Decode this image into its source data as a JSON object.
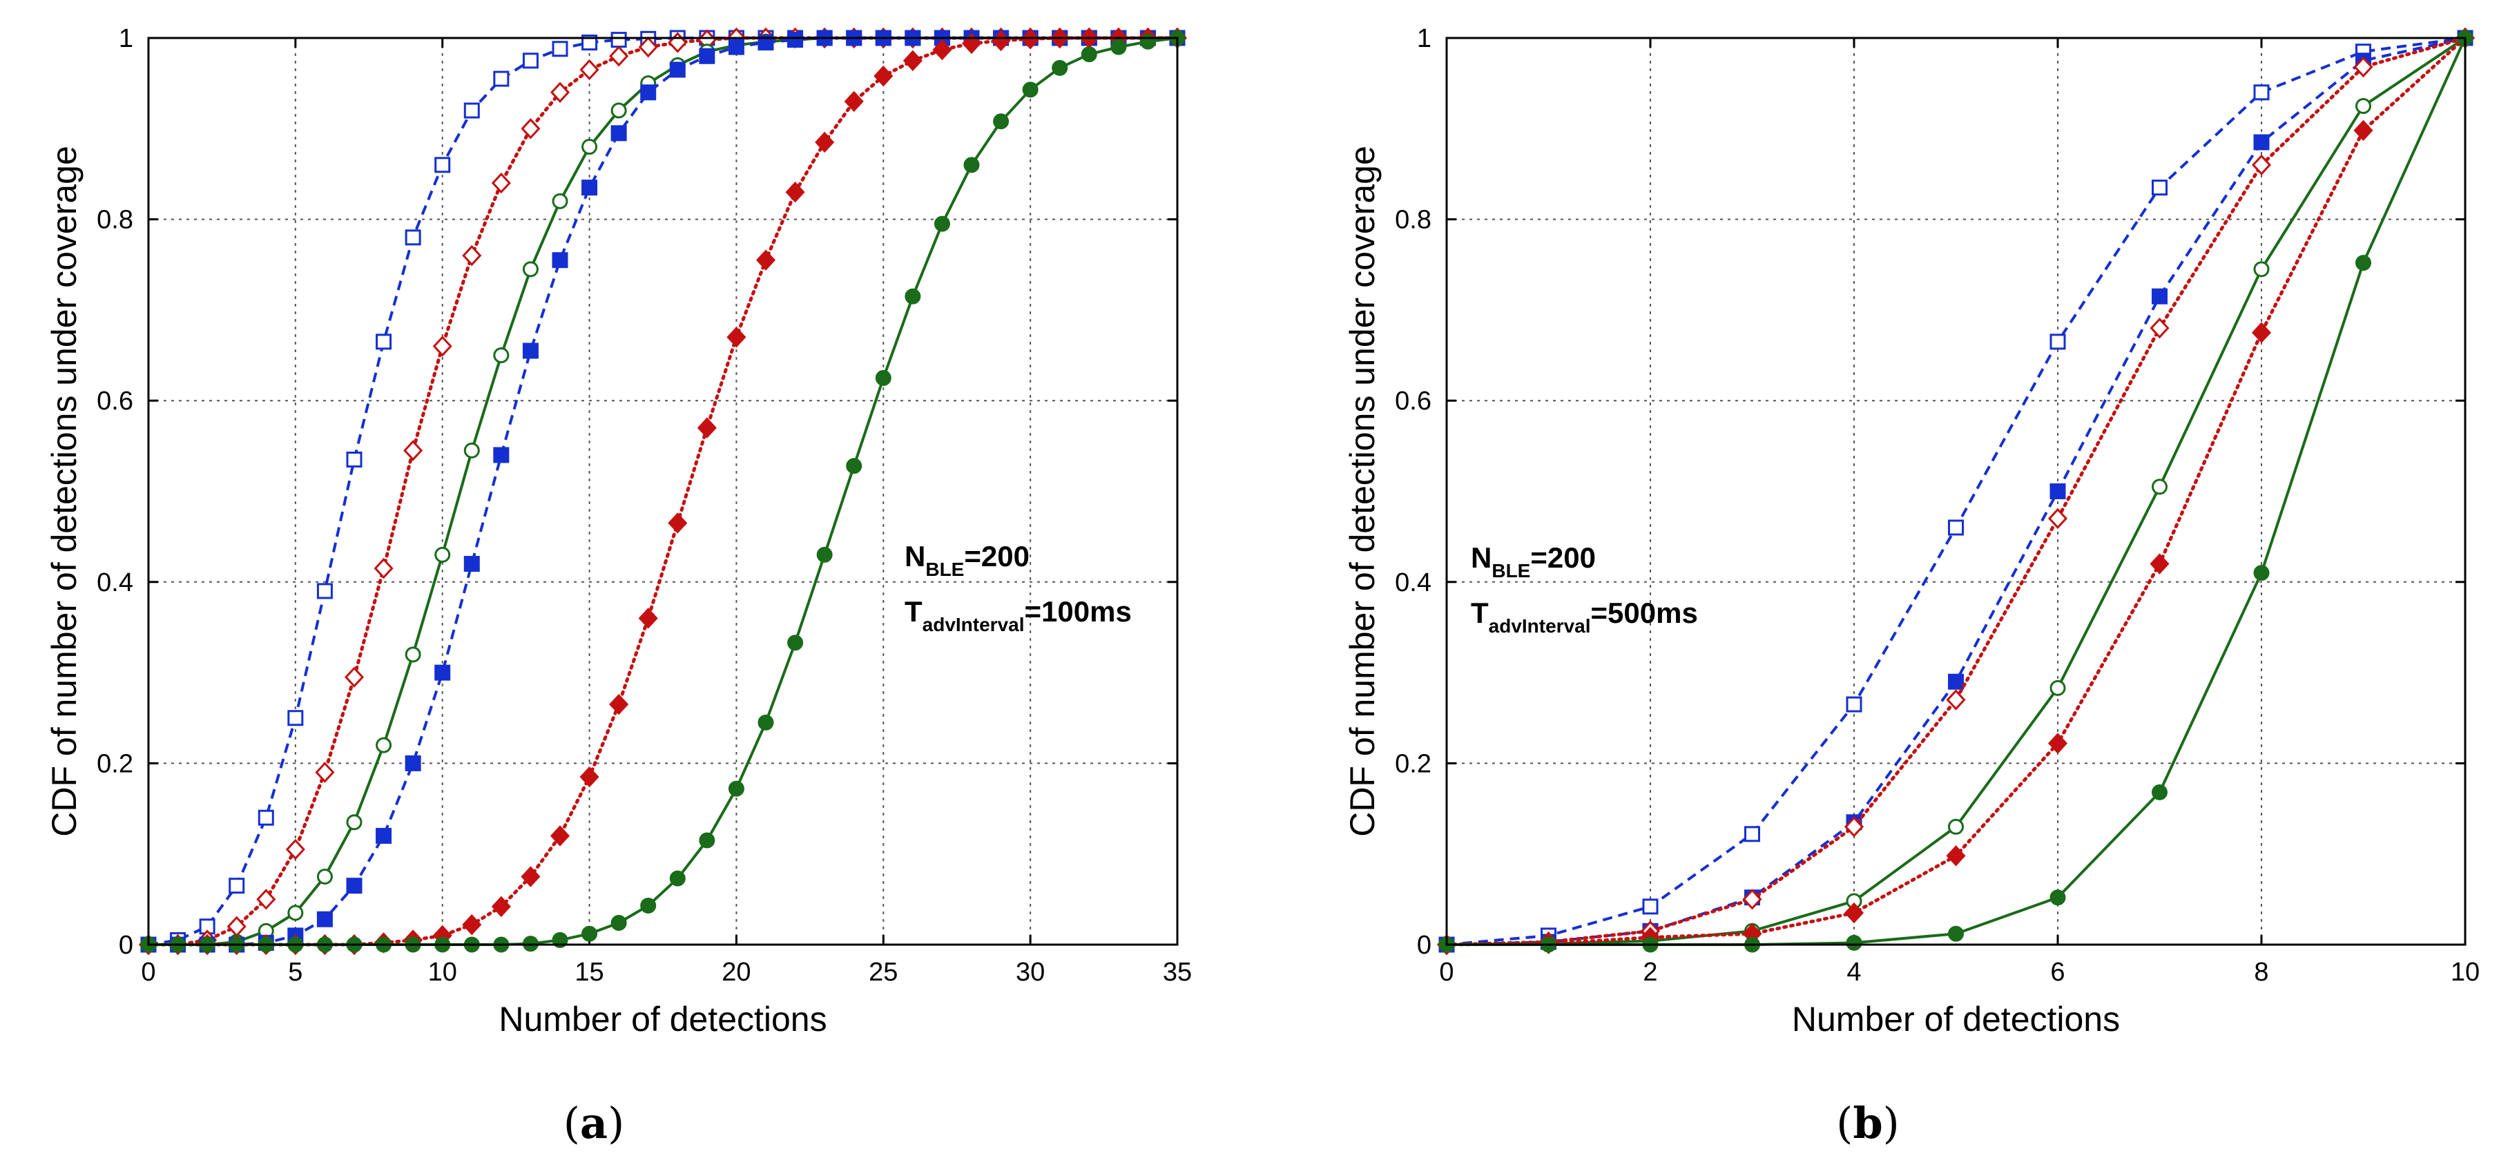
{
  "chart_data": [
    {
      "type": "line",
      "panel": "(a)",
      "xlabel": "Number of detections",
      "ylabel": "CDF of  number of detections under coverage",
      "xlim": [
        0,
        35
      ],
      "ylim": [
        0,
        1
      ],
      "xticks": [
        0,
        5,
        10,
        15,
        20,
        25,
        30,
        35
      ],
      "yticks": [
        0,
        0.2,
        0.4,
        0.6,
        0.8,
        1
      ],
      "grid": true,
      "annotation": {
        "line1": {
          "main": "N",
          "sub": "BLE",
          "rest": "=200"
        },
        "line2": {
          "main": "T",
          "sub": "advInterval",
          "rest": "=100ms"
        }
      },
      "series": [
        {
          "name": "blue-open-square",
          "color": "#1530d0",
          "line": "dashed",
          "marker": "square",
          "filled": false,
          "x": [
            0,
            1,
            2,
            3,
            4,
            5,
            6,
            7,
            8,
            9,
            10,
            11,
            12,
            13,
            14,
            15,
            16,
            17,
            18,
            19,
            20,
            21,
            22,
            23,
            24,
            25,
            26,
            27,
            28,
            29,
            30,
            31,
            32,
            33,
            34,
            35
          ],
          "y": [
            0,
            0.005,
            0.02,
            0.065,
            0.14,
            0.25,
            0.39,
            0.535,
            0.665,
            0.78,
            0.86,
            0.92,
            0.955,
            0.975,
            0.988,
            0.995,
            0.998,
            0.999,
            1,
            1,
            1,
            1,
            1,
            1,
            1,
            1,
            1,
            1,
            1,
            1,
            1,
            1,
            1,
            1,
            1,
            1
          ]
        },
        {
          "name": "red-open-diamond",
          "color": "#c41010",
          "line": "dotted",
          "marker": "diamond",
          "filled": false,
          "x": [
            0,
            1,
            2,
            3,
            4,
            5,
            6,
            7,
            8,
            9,
            10,
            11,
            12,
            13,
            14,
            15,
            16,
            17,
            18,
            19,
            20,
            21,
            22,
            23,
            24,
            25,
            26,
            27,
            28,
            29,
            30,
            31,
            32,
            33,
            34,
            35
          ],
          "y": [
            0,
            0,
            0.005,
            0.02,
            0.05,
            0.105,
            0.19,
            0.295,
            0.415,
            0.545,
            0.66,
            0.76,
            0.84,
            0.9,
            0.94,
            0.965,
            0.98,
            0.99,
            0.995,
            0.998,
            1,
            1,
            1,
            1,
            1,
            1,
            1,
            1,
            1,
            1,
            1,
            1,
            1,
            1,
            1,
            1
          ]
        },
        {
          "name": "green-open-circle",
          "color": "#1a6b1a",
          "line": "solid",
          "marker": "circle",
          "filled": false,
          "x": [
            0,
            1,
            2,
            3,
            4,
            5,
            6,
            7,
            8,
            9,
            10,
            11,
            12,
            13,
            14,
            15,
            16,
            17,
            18,
            19,
            20,
            21,
            22,
            23,
            24,
            25,
            26,
            27,
            28,
            29,
            30,
            31,
            32,
            33,
            34,
            35
          ],
          "y": [
            0,
            0,
            0,
            0.003,
            0.015,
            0.035,
            0.075,
            0.135,
            0.22,
            0.32,
            0.43,
            0.545,
            0.65,
            0.745,
            0.82,
            0.88,
            0.92,
            0.95,
            0.97,
            0.985,
            0.992,
            0.996,
            0.998,
            1,
            1,
            1,
            1,
            1,
            1,
            1,
            1,
            1,
            1,
            1,
            1,
            1
          ]
        },
        {
          "name": "blue-filled-square",
          "color": "#1530d0",
          "line": "dashed",
          "marker": "square",
          "filled": true,
          "x": [
            0,
            1,
            2,
            3,
            4,
            5,
            6,
            7,
            8,
            9,
            10,
            11,
            12,
            13,
            14,
            15,
            16,
            17,
            18,
            19,
            20,
            21,
            22,
            23,
            24,
            25,
            26,
            27,
            28,
            29,
            30,
            31,
            32,
            33,
            34,
            35
          ],
          "y": [
            0,
            0,
            0,
            0,
            0.002,
            0.01,
            0.028,
            0.065,
            0.12,
            0.2,
            0.3,
            0.42,
            0.54,
            0.655,
            0.755,
            0.835,
            0.895,
            0.94,
            0.965,
            0.98,
            0.99,
            0.995,
            0.998,
            1,
            1,
            1,
            1,
            1,
            1,
            1,
            1,
            1,
            1,
            1,
            1,
            1
          ]
        },
        {
          "name": "red-filled-diamond",
          "color": "#c41010",
          "line": "dotted",
          "marker": "diamond",
          "filled": true,
          "x": [
            0,
            1,
            2,
            3,
            4,
            5,
            6,
            7,
            8,
            9,
            10,
            11,
            12,
            13,
            14,
            15,
            16,
            17,
            18,
            19,
            20,
            21,
            22,
            23,
            24,
            25,
            26,
            27,
            28,
            29,
            30,
            31,
            32,
            33,
            34,
            35
          ],
          "y": [
            0,
            0,
            0,
            0,
            0,
            0,
            0,
            0,
            0.002,
            0.005,
            0.01,
            0.022,
            0.042,
            0.075,
            0.12,
            0.185,
            0.265,
            0.36,
            0.465,
            0.57,
            0.67,
            0.755,
            0.83,
            0.885,
            0.93,
            0.958,
            0.975,
            0.987,
            0.994,
            0.997,
            0.999,
            1,
            1,
            1,
            1,
            1
          ]
        },
        {
          "name": "green-filled-circle",
          "color": "#1a6b1a",
          "line": "solid",
          "marker": "circle",
          "filled": true,
          "x": [
            0,
            1,
            2,
            3,
            4,
            5,
            6,
            7,
            8,
            9,
            10,
            11,
            12,
            13,
            14,
            15,
            16,
            17,
            18,
            19,
            20,
            21,
            22,
            23,
            24,
            25,
            26,
            27,
            28,
            29,
            30,
            31,
            32,
            33,
            34,
            35
          ],
          "y": [
            0,
            0,
            0,
            0,
            0,
            0,
            0,
            0,
            0,
            0,
            0,
            0,
            0,
            0.001,
            0.005,
            0.012,
            0.024,
            0.043,
            0.073,
            0.115,
            0.172,
            0.245,
            0.333,
            0.43,
            0.528,
            0.625,
            0.715,
            0.795,
            0.86,
            0.908,
            0.943,
            0.967,
            0.982,
            0.99,
            0.996,
            1
          ]
        }
      ]
    },
    {
      "type": "line",
      "panel": "(b)",
      "xlabel": "Number of detections",
      "ylabel": "CDF of  number of detections under coverage",
      "xlim": [
        0,
        10
      ],
      "ylim": [
        0,
        1
      ],
      "xticks": [
        0,
        2,
        4,
        6,
        8,
        10
      ],
      "yticks": [
        0,
        0.2,
        0.4,
        0.6,
        0.8,
        1
      ],
      "grid": true,
      "annotation": {
        "line1": {
          "main": "N",
          "sub": "BLE",
          "rest": "=200"
        },
        "line2": {
          "main": "T",
          "sub": "advInterval",
          "rest": "=500ms"
        }
      },
      "series": [
        {
          "name": "blue-open-square",
          "color": "#1530d0",
          "line": "dashed",
          "marker": "square",
          "filled": false,
          "x": [
            0,
            1,
            2,
            3,
            4,
            5,
            6,
            7,
            8,
            9,
            10
          ],
          "y": [
            0,
            0.01,
            0.042,
            0.122,
            0.265,
            0.46,
            0.665,
            0.835,
            0.94,
            0.985,
            1
          ]
        },
        {
          "name": "blue-filled-square",
          "color": "#1530d0",
          "line": "dashed",
          "marker": "square",
          "filled": true,
          "x": [
            0,
            1,
            2,
            3,
            4,
            5,
            6,
            7,
            8,
            9,
            10
          ],
          "y": [
            0,
            0.003,
            0.015,
            0.052,
            0.135,
            0.29,
            0.5,
            0.715,
            0.885,
            0.975,
            1
          ]
        },
        {
          "name": "red-open-diamond",
          "color": "#c41010",
          "line": "dotted",
          "marker": "diamond",
          "filled": false,
          "x": [
            0,
            1,
            2,
            3,
            4,
            5,
            6,
            7,
            8,
            9,
            10
          ],
          "y": [
            0,
            0.003,
            0.015,
            0.05,
            0.13,
            0.27,
            0.47,
            0.68,
            0.86,
            0.968,
            1
          ]
        },
        {
          "name": "green-open-circle",
          "color": "#1a6b1a",
          "line": "solid",
          "marker": "circle",
          "filled": false,
          "x": [
            0,
            1,
            2,
            3,
            4,
            5,
            6,
            7,
            8,
            9,
            10
          ],
          "y": [
            0,
            0.001,
            0.004,
            0.015,
            0.048,
            0.13,
            0.283,
            0.505,
            0.745,
            0.925,
            1
          ]
        },
        {
          "name": "red-filled-diamond",
          "color": "#c41010",
          "line": "dotted",
          "marker": "diamond",
          "filled": true,
          "x": [
            0,
            1,
            2,
            3,
            4,
            5,
            6,
            7,
            8,
            9,
            10
          ],
          "y": [
            0,
            0.001,
            0.008,
            0.012,
            0.035,
            0.098,
            0.222,
            0.42,
            0.675,
            0.898,
            1
          ]
        },
        {
          "name": "green-filled-circle",
          "color": "#1a6b1a",
          "line": "solid",
          "marker": "circle",
          "filled": true,
          "x": [
            0,
            1,
            2,
            3,
            4,
            5,
            6,
            7,
            8,
            9,
            10
          ],
          "y": [
            0,
            0,
            0,
            0,
            0.002,
            0.012,
            0.052,
            0.168,
            0.41,
            0.752,
            1
          ]
        }
      ]
    }
  ]
}
